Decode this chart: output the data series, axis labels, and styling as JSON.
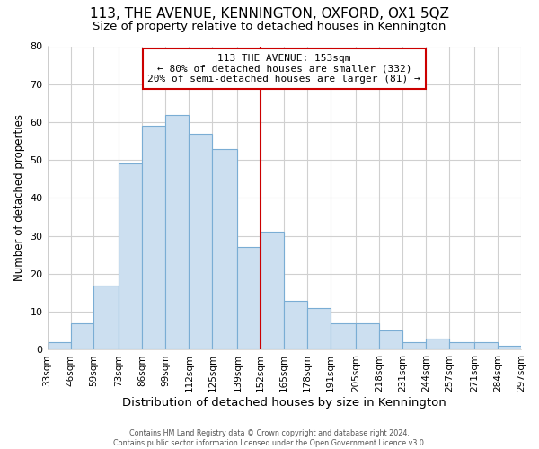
{
  "title": "113, THE AVENUE, KENNINGTON, OXFORD, OX1 5QZ",
  "subtitle": "Size of property relative to detached houses in Kennington",
  "xlabel": "Distribution of detached houses by size in Kennington",
  "ylabel": "Number of detached properties",
  "bin_edges": [
    33,
    46,
    59,
    73,
    86,
    99,
    112,
    125,
    139,
    152,
    165,
    178,
    191,
    205,
    218,
    231,
    244,
    257,
    271,
    284,
    297
  ],
  "bar_heights": [
    2,
    7,
    17,
    49,
    59,
    62,
    57,
    53,
    27,
    31,
    13,
    11,
    7,
    7,
    5,
    2,
    3,
    2,
    2,
    1
  ],
  "bar_color": "#ccdff0",
  "bar_edge_color": "#7aadd4",
  "vline_x": 152,
  "vline_color": "#cc0000",
  "annotation_box_text": "113 THE AVENUE: 153sqm\n← 80% of detached houses are smaller (332)\n20% of semi-detached houses are larger (81) →",
  "annotation_box_facecolor": "#ffffff",
  "annotation_box_edgecolor": "#cc0000",
  "ylim": [
    0,
    80
  ],
  "yticks": [
    0,
    10,
    20,
    30,
    40,
    50,
    60,
    70,
    80
  ],
  "footer_text": "Contains HM Land Registry data © Crown copyright and database right 2024.\nContains public sector information licensed under the Open Government Licence v3.0.",
  "grid_color": "#d0d0d0",
  "background_color": "#ffffff",
  "tick_label_size": 7.5,
  "title_fontsize": 11,
  "subtitle_fontsize": 9.5,
  "ylabel_fontsize": 8.5,
  "xlabel_fontsize": 9.5
}
